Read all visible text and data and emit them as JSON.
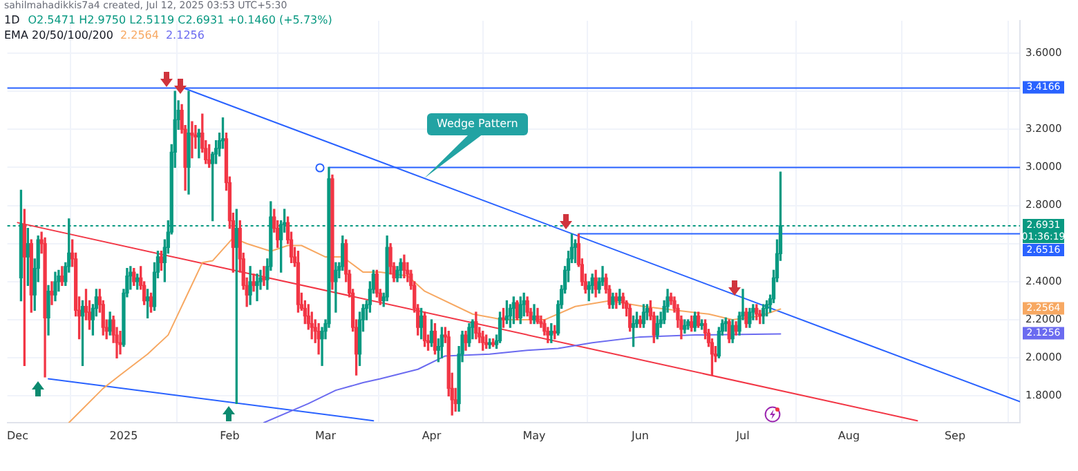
{
  "chart_data": {
    "type": "candlestick",
    "title": "1D",
    "subtitle": "EMA 20/50/100/200",
    "xlim": [
      "2024-11-28",
      "2025-09-20"
    ],
    "xticks": [
      {
        "value": "2024-12-01",
        "label": "Dec"
      },
      {
        "value": "2025-01-01",
        "label": "2025"
      },
      {
        "value": "2025-02-01",
        "label": "Feb"
      },
      {
        "value": "2025-03-01",
        "label": "Mar"
      },
      {
        "value": "2025-04-01",
        "label": "Apr"
      },
      {
        "value": "2025-05-01",
        "label": "May"
      },
      {
        "value": "2025-06-01",
        "label": "Jun"
      },
      {
        "value": "2025-07-01",
        "label": "Jul"
      },
      {
        "value": "2025-08-01",
        "label": "Aug"
      },
      {
        "value": "2025-09-01",
        "label": "Sep"
      }
    ],
    "ylim": [
      1.66,
      3.77
    ],
    "yticks": [
      {
        "value": 1.8,
        "label": "1.8000"
      },
      {
        "value": 2.0,
        "label": "2.0000"
      },
      {
        "value": 2.2,
        "label": "2.2000"
      },
      {
        "value": 2.4,
        "label": "2.4000"
      },
      {
        "value": 2.6,
        "label": null
      },
      {
        "value": 2.8,
        "label": "2.8000"
      },
      {
        "value": 3.0,
        "label": "3.0000"
      },
      {
        "value": 3.2,
        "label": "3.2000"
      },
      {
        "value": 3.4,
        "label": null
      },
      {
        "value": 3.6,
        "label": "3.6000"
      }
    ],
    "grid": true,
    "x": [
      "2024-12-02",
      "2024-12-03",
      "2024-12-04",
      "2024-12-05",
      "2024-12-06",
      "2024-12-07",
      "2024-12-08",
      "2024-12-09",
      "2024-12-10",
      "2024-12-11",
      "2024-12-12",
      "2024-12-13",
      "2024-12-14",
      "2024-12-15",
      "2024-12-16",
      "2024-12-17",
      "2024-12-18",
      "2024-12-19",
      "2024-12-20",
      "2024-12-21",
      "2024-12-22",
      "2024-12-23",
      "2024-12-24",
      "2024-12-25",
      "2024-12-26",
      "2024-12-27",
      "2024-12-28",
      "2024-12-29",
      "2024-12-30",
      "2024-12-31",
      "2025-01-01",
      "2025-01-02",
      "2025-01-03",
      "2025-01-04",
      "2025-01-05",
      "2025-01-06",
      "2025-01-07",
      "2025-01-08",
      "2025-01-09",
      "2025-01-10",
      "2025-01-11",
      "2025-01-12",
      "2025-01-13",
      "2025-01-14",
      "2025-01-15",
      "2025-01-16",
      "2025-01-17",
      "2025-01-18",
      "2025-01-19",
      "2025-01-20",
      "2025-01-21",
      "2025-01-22",
      "2025-01-23",
      "2025-01-24",
      "2025-01-25",
      "2025-01-26",
      "2025-01-27",
      "2025-01-28",
      "2025-01-29",
      "2025-01-30",
      "2025-01-31",
      "2025-02-01",
      "2025-02-02",
      "2025-02-03",
      "2025-02-04",
      "2025-02-05",
      "2025-02-06",
      "2025-02-07",
      "2025-02-08",
      "2025-02-09",
      "2025-02-10",
      "2025-02-11",
      "2025-02-12",
      "2025-02-13",
      "2025-02-14",
      "2025-02-15",
      "2025-02-16",
      "2025-02-17",
      "2025-02-18",
      "2025-02-19",
      "2025-02-20",
      "2025-02-21",
      "2025-02-22",
      "2025-02-23",
      "2025-02-24",
      "2025-02-25",
      "2025-02-26",
      "2025-02-27",
      "2025-02-28",
      "2025-03-01",
      "2025-03-02",
      "2025-03-03",
      "2025-03-04",
      "2025-03-05",
      "2025-03-06",
      "2025-03-07",
      "2025-03-08",
      "2025-03-09",
      "2025-03-10",
      "2025-03-11",
      "2025-03-12",
      "2025-03-13",
      "2025-03-14",
      "2025-03-15",
      "2025-03-16",
      "2025-03-17",
      "2025-03-18",
      "2025-03-19",
      "2025-03-20",
      "2025-03-21",
      "2025-03-22",
      "2025-03-23",
      "2025-03-24",
      "2025-03-25",
      "2025-03-26",
      "2025-03-27",
      "2025-03-28",
      "2025-03-29",
      "2025-03-30",
      "2025-03-31",
      "2025-04-01",
      "2025-04-02",
      "2025-04-03",
      "2025-04-04",
      "2025-04-05",
      "2025-04-06",
      "2025-04-07",
      "2025-04-08",
      "2025-04-09",
      "2025-04-10",
      "2025-04-11",
      "2025-04-12",
      "2025-04-13",
      "2025-04-14",
      "2025-04-15",
      "2025-04-16",
      "2025-04-17",
      "2025-04-18",
      "2025-04-19",
      "2025-04-20",
      "2025-04-21",
      "2025-04-22",
      "2025-04-23",
      "2025-04-24",
      "2025-04-25",
      "2025-04-26",
      "2025-04-27",
      "2025-04-28",
      "2025-04-29",
      "2025-04-30",
      "2025-05-01",
      "2025-05-02",
      "2025-05-03",
      "2025-05-04",
      "2025-05-05",
      "2025-05-06",
      "2025-05-07",
      "2025-05-08",
      "2025-05-09",
      "2025-05-10",
      "2025-05-11",
      "2025-05-12",
      "2025-05-13",
      "2025-05-14",
      "2025-05-15",
      "2025-05-16",
      "2025-05-17",
      "2025-05-18",
      "2025-05-19",
      "2025-05-20",
      "2025-05-21",
      "2025-05-22",
      "2025-05-23",
      "2025-05-24",
      "2025-05-25",
      "2025-05-26",
      "2025-05-27",
      "2025-05-28",
      "2025-05-29",
      "2025-05-30",
      "2025-05-31",
      "2025-06-01",
      "2025-06-02",
      "2025-06-03",
      "2025-06-04",
      "2025-06-05",
      "2025-06-06",
      "2025-06-07",
      "2025-06-08",
      "2025-06-09",
      "2025-06-10",
      "2025-06-11",
      "2025-06-12",
      "2025-06-13",
      "2025-06-14",
      "2025-06-15",
      "2025-06-16",
      "2025-06-17",
      "2025-06-18",
      "2025-06-19",
      "2025-06-20",
      "2025-06-21",
      "2025-06-22",
      "2025-06-23",
      "2025-06-24",
      "2025-06-25",
      "2025-06-26",
      "2025-06-27",
      "2025-06-28",
      "2025-06-29",
      "2025-06-30",
      "2025-07-01",
      "2025-07-02",
      "2025-07-03",
      "2025-07-04",
      "2025-07-05",
      "2025-07-06",
      "2025-07-07",
      "2025-07-08",
      "2025-07-09",
      "2025-07-10",
      "2025-07-11",
      "2025-07-12"
    ],
    "ohlc": [
      [
        2.42,
        2.88,
        2.3,
        2.7
      ],
      [
        2.7,
        2.78,
        1.96,
        2.53
      ],
      [
        2.53,
        2.68,
        2.38,
        2.6
      ],
      [
        2.6,
        2.62,
        2.24,
        2.33
      ],
      [
        2.33,
        2.52,
        2.25,
        2.47
      ],
      [
        2.47,
        2.64,
        2.4,
        2.62
      ],
      [
        2.62,
        2.66,
        2.55,
        2.6
      ],
      [
        2.6,
        2.63,
        1.9,
        2.21
      ],
      [
        2.21,
        2.38,
        2.12,
        2.35
      ],
      [
        2.35,
        2.4,
        2.28,
        2.33
      ],
      [
        2.33,
        2.45,
        2.3,
        2.4
      ],
      [
        2.4,
        2.46,
        2.35,
        2.43
      ],
      [
        2.43,
        2.48,
        2.38,
        2.4
      ],
      [
        2.4,
        2.5,
        2.38,
        2.48
      ],
      [
        2.48,
        2.73,
        2.45,
        2.55
      ],
      [
        2.55,
        2.62,
        2.48,
        2.52
      ],
      [
        2.52,
        2.55,
        2.22,
        2.25
      ],
      [
        2.25,
        2.32,
        2.1,
        2.22
      ],
      [
        2.22,
        2.3,
        1.96,
        2.27
      ],
      [
        2.27,
        2.36,
        2.2,
        2.24
      ],
      [
        2.24,
        2.3,
        2.15,
        2.2
      ],
      [
        2.2,
        2.28,
        2.12,
        2.26
      ],
      [
        2.26,
        2.36,
        2.22,
        2.32
      ],
      [
        2.32,
        2.36,
        2.24,
        2.28
      ],
      [
        2.28,
        2.3,
        2.12,
        2.16
      ],
      [
        2.16,
        2.2,
        2.1,
        2.14
      ],
      [
        2.14,
        2.24,
        2.12,
        2.2
      ],
      [
        2.2,
        2.22,
        2.08,
        2.12
      ],
      [
        2.12,
        2.16,
        2.0,
        2.08
      ],
      [
        2.08,
        2.14,
        2.02,
        2.07
      ],
      [
        2.07,
        2.36,
        2.06,
        2.34
      ],
      [
        2.34,
        2.47,
        2.32,
        2.43
      ],
      [
        2.43,
        2.48,
        2.36,
        2.45
      ],
      [
        2.45,
        2.47,
        2.38,
        2.4
      ],
      [
        2.4,
        2.44,
        2.36,
        2.42
      ],
      [
        2.42,
        2.48,
        2.36,
        2.38
      ],
      [
        2.38,
        2.4,
        2.28,
        2.3
      ],
      [
        2.3,
        2.36,
        2.21,
        2.32
      ],
      [
        2.32,
        2.34,
        2.24,
        2.27
      ],
      [
        2.27,
        2.5,
        2.25,
        2.45
      ],
      [
        2.45,
        2.56,
        2.42,
        2.53
      ],
      [
        2.53,
        2.56,
        2.46,
        2.5
      ],
      [
        2.5,
        2.62,
        2.4,
        2.58
      ],
      [
        2.58,
        2.72,
        2.55,
        2.66
      ],
      [
        2.66,
        3.12,
        2.65,
        3.08
      ],
      [
        3.08,
        3.4,
        3.0,
        3.25
      ],
      [
        3.25,
        3.35,
        3.2,
        3.3
      ],
      [
        3.3,
        3.33,
        3.18,
        3.2
      ],
      [
        3.2,
        3.22,
        2.88,
        3.0
      ],
      [
        3.0,
        3.4,
        2.86,
        3.18
      ],
      [
        3.18,
        3.24,
        3.05,
        3.17
      ],
      [
        3.17,
        3.22,
        3.1,
        3.16
      ],
      [
        3.16,
        3.2,
        3.05,
        3.18
      ],
      [
        3.18,
        3.28,
        3.08,
        3.1
      ],
      [
        3.1,
        3.14,
        3.02,
        3.04
      ],
      [
        3.04,
        3.12,
        3.0,
        3.02
      ],
      [
        3.02,
        3.08,
        2.72,
        3.07
      ],
      [
        3.07,
        3.14,
        3.02,
        3.1
      ],
      [
        3.1,
        3.18,
        3.06,
        3.14
      ],
      [
        3.14,
        3.26,
        3.1,
        3.15
      ],
      [
        3.15,
        3.18,
        2.88,
        2.92
      ],
      [
        2.92,
        2.95,
        2.68,
        2.72
      ],
      [
        2.72,
        2.76,
        2.45,
        2.58
      ],
      [
        2.58,
        2.78,
        1.76,
        2.68
      ],
      [
        2.68,
        2.72,
        2.45,
        2.52
      ],
      [
        2.52,
        2.55,
        2.36,
        2.38
      ],
      [
        2.38,
        2.42,
        2.27,
        2.33
      ],
      [
        2.33,
        2.48,
        2.28,
        2.4
      ],
      [
        2.4,
        2.44,
        2.35,
        2.38
      ],
      [
        2.38,
        2.44,
        2.3,
        2.4
      ],
      [
        2.4,
        2.46,
        2.36,
        2.42
      ],
      [
        2.42,
        2.48,
        2.38,
        2.41
      ],
      [
        2.41,
        2.52,
        2.36,
        2.48
      ],
      [
        2.48,
        2.82,
        2.46,
        2.74
      ],
      [
        2.74,
        2.78,
        2.66,
        2.68
      ],
      [
        2.68,
        2.72,
        2.58,
        2.62
      ],
      [
        2.62,
        2.72,
        2.45,
        2.7
      ],
      [
        2.7,
        2.78,
        2.66,
        2.71
      ],
      [
        2.71,
        2.74,
        2.6,
        2.62
      ],
      [
        2.62,
        2.66,
        2.5,
        2.53
      ],
      [
        2.53,
        2.58,
        2.48,
        2.5
      ],
      [
        2.5,
        2.56,
        2.24,
        2.28
      ],
      [
        2.28,
        2.34,
        2.25,
        2.26
      ],
      [
        2.26,
        2.3,
        2.18,
        2.22
      ],
      [
        2.22,
        2.28,
        2.15,
        2.18
      ],
      [
        2.18,
        2.24,
        2.1,
        2.16
      ],
      [
        2.16,
        2.2,
        2.08,
        2.14
      ],
      [
        2.14,
        2.18,
        2.02,
        2.1
      ],
      [
        2.1,
        2.16,
        1.96,
        2.14
      ],
      [
        2.14,
        2.2,
        2.1,
        2.18
      ],
      [
        2.18,
        3.0,
        2.16,
        2.94
      ],
      [
        2.94,
        2.96,
        2.36,
        2.4
      ],
      [
        2.4,
        2.5,
        2.24,
        2.46
      ],
      [
        2.46,
        2.5,
        2.42,
        2.48
      ],
      [
        2.48,
        2.64,
        2.46,
        2.6
      ],
      [
        2.6,
        2.62,
        2.4,
        2.44
      ],
      [
        2.44,
        2.46,
        2.32,
        2.34
      ],
      [
        2.34,
        2.36,
        2.14,
        2.16
      ],
      [
        2.16,
        2.2,
        1.91,
        2.02
      ],
      [
        2.02,
        2.24,
        1.96,
        2.2
      ],
      [
        2.2,
        2.28,
        2.14,
        2.26
      ],
      [
        2.26,
        2.3,
        2.2,
        2.28
      ],
      [
        2.28,
        2.4,
        2.24,
        2.36
      ],
      [
        2.36,
        2.46,
        2.34,
        2.44
      ],
      [
        2.44,
        2.46,
        2.32,
        2.34
      ],
      [
        2.34,
        2.36,
        2.28,
        2.3
      ],
      [
        2.3,
        2.34,
        2.27,
        2.32
      ],
      [
        2.32,
        2.64,
        2.3,
        2.58
      ],
      [
        2.58,
        2.6,
        2.44,
        2.48
      ],
      [
        2.48,
        2.5,
        2.4,
        2.42
      ],
      [
        2.42,
        2.48,
        2.4,
        2.46
      ],
      [
        2.46,
        2.52,
        2.42,
        2.5
      ],
      [
        2.5,
        2.54,
        2.42,
        2.46
      ],
      [
        2.46,
        2.5,
        2.4,
        2.44
      ],
      [
        2.44,
        2.46,
        2.36,
        2.38
      ],
      [
        2.38,
        2.4,
        2.24,
        2.26
      ],
      [
        2.26,
        2.28,
        2.12,
        2.16
      ],
      [
        2.16,
        2.26,
        2.1,
        2.22
      ],
      [
        2.22,
        2.24,
        2.06,
        2.09
      ],
      [
        2.09,
        2.12,
        2.04,
        2.08
      ],
      [
        2.08,
        2.2,
        2.06,
        2.14
      ],
      [
        2.14,
        2.18,
        2.02,
        2.04
      ],
      [
        2.04,
        2.1,
        1.98,
        2.06
      ],
      [
        2.06,
        2.16,
        2.0,
        2.12
      ],
      [
        2.12,
        2.16,
        2.08,
        2.11
      ],
      [
        2.11,
        2.14,
        1.8,
        1.84
      ],
      [
        1.84,
        1.92,
        1.7,
        1.78
      ],
      [
        1.78,
        1.84,
        1.72,
        1.76
      ],
      [
        1.76,
        2.06,
        1.72,
        2.02
      ],
      [
        2.02,
        2.14,
        1.98,
        2.12
      ],
      [
        2.12,
        2.14,
        2.04,
        2.08
      ],
      [
        2.08,
        2.18,
        2.06,
        2.16
      ],
      [
        2.16,
        2.2,
        2.1,
        2.19
      ],
      [
        2.19,
        2.24,
        2.1,
        2.13
      ],
      [
        2.13,
        2.16,
        2.08,
        2.11
      ],
      [
        2.11,
        2.14,
        2.04,
        2.08
      ],
      [
        2.08,
        2.12,
        2.05,
        2.07
      ],
      [
        2.07,
        2.1,
        2.05,
        2.08
      ],
      [
        2.08,
        2.1,
        2.06,
        2.07
      ],
      [
        2.07,
        2.12,
        2.05,
        2.09
      ],
      [
        2.09,
        2.24,
        2.08,
        2.21
      ],
      [
        2.21,
        2.26,
        2.16,
        2.2
      ],
      [
        2.2,
        2.3,
        2.18,
        2.22
      ],
      [
        2.22,
        2.28,
        2.16,
        2.26
      ],
      [
        2.26,
        2.32,
        2.18,
        2.29
      ],
      [
        2.29,
        2.3,
        2.2,
        2.21
      ],
      [
        2.21,
        2.32,
        2.18,
        2.28
      ],
      [
        2.28,
        2.34,
        2.22,
        2.3
      ],
      [
        2.3,
        2.32,
        2.22,
        2.24
      ],
      [
        2.24,
        2.26,
        2.18,
        2.2
      ],
      [
        2.2,
        2.28,
        2.18,
        2.22
      ],
      [
        2.22,
        2.26,
        2.18,
        2.19
      ],
      [
        2.19,
        2.22,
        2.16,
        2.18
      ],
      [
        2.18,
        2.2,
        2.12,
        2.14
      ],
      [
        2.14,
        2.16,
        2.08,
        2.12
      ],
      [
        2.12,
        2.18,
        2.08,
        2.14
      ],
      [
        2.14,
        2.17,
        2.1,
        2.13
      ],
      [
        2.13,
        2.3,
        2.12,
        2.28
      ],
      [
        2.28,
        2.38,
        2.26,
        2.36
      ],
      [
        2.36,
        2.48,
        2.34,
        2.46
      ],
      [
        2.46,
        2.56,
        2.4,
        2.52
      ],
      [
        2.52,
        2.65,
        2.5,
        2.58
      ],
      [
        2.58,
        2.62,
        2.5,
        2.6
      ],
      [
        2.6,
        2.65,
        2.48,
        2.49
      ],
      [
        2.49,
        2.52,
        2.38,
        2.4
      ],
      [
        2.4,
        2.44,
        2.34,
        2.36
      ],
      [
        2.36,
        2.4,
        2.3,
        2.38
      ],
      [
        2.38,
        2.44,
        2.34,
        2.42
      ],
      [
        2.42,
        2.46,
        2.32,
        2.36
      ],
      [
        2.36,
        2.42,
        2.34,
        2.4
      ],
      [
        2.4,
        2.48,
        2.38,
        2.42
      ],
      [
        2.42,
        2.44,
        2.34,
        2.36
      ],
      [
        2.36,
        2.38,
        2.26,
        2.28
      ],
      [
        2.28,
        2.34,
        2.26,
        2.32
      ],
      [
        2.32,
        2.34,
        2.26,
        2.3
      ],
      [
        2.3,
        2.36,
        2.28,
        2.32
      ],
      [
        2.32,
        2.34,
        2.26,
        2.29
      ],
      [
        2.29,
        2.3,
        2.22,
        2.26
      ],
      [
        2.26,
        2.28,
        2.14,
        2.16
      ],
      [
        2.16,
        2.22,
        2.06,
        2.18
      ],
      [
        2.18,
        2.24,
        2.16,
        2.2
      ],
      [
        2.2,
        2.22,
        2.16,
        2.18
      ],
      [
        2.18,
        2.28,
        2.16,
        2.24
      ],
      [
        2.24,
        2.28,
        2.2,
        2.26
      ],
      [
        2.26,
        2.3,
        2.2,
        2.22
      ],
      [
        2.22,
        2.24,
        2.08,
        2.12
      ],
      [
        2.12,
        2.22,
        2.1,
        2.18
      ],
      [
        2.18,
        2.24,
        2.16,
        2.2
      ],
      [
        2.2,
        2.3,
        2.18,
        2.27
      ],
      [
        2.27,
        2.36,
        2.24,
        2.32
      ],
      [
        2.32,
        2.34,
        2.28,
        2.3
      ],
      [
        2.3,
        2.32,
        2.24,
        2.26
      ],
      [
        2.26,
        2.28,
        2.16,
        2.2
      ],
      [
        2.2,
        2.22,
        2.1,
        2.15
      ],
      [
        2.15,
        2.2,
        2.13,
        2.17
      ],
      [
        2.17,
        2.2,
        2.15,
        2.19
      ],
      [
        2.19,
        2.22,
        2.14,
        2.16
      ],
      [
        2.16,
        2.24,
        2.14,
        2.22
      ],
      [
        2.22,
        2.24,
        2.16,
        2.17
      ],
      [
        2.17,
        2.2,
        2.15,
        2.18
      ],
      [
        2.18,
        2.2,
        2.1,
        2.13
      ],
      [
        2.13,
        2.15,
        2.06,
        2.08
      ],
      [
        2.08,
        2.1,
        1.91,
        2.02
      ],
      [
        2.02,
        2.06,
        1.98,
        2.01
      ],
      [
        2.01,
        2.16,
        2.0,
        2.14
      ],
      [
        2.14,
        2.2,
        2.12,
        2.18
      ],
      [
        2.18,
        2.21,
        2.14,
        2.19
      ],
      [
        2.19,
        2.2,
        2.08,
        2.1
      ],
      [
        2.1,
        2.2,
        2.08,
        2.17
      ],
      [
        2.17,
        2.19,
        2.12,
        2.14
      ],
      [
        2.14,
        2.24,
        2.12,
        2.22
      ],
      [
        2.22,
        2.36,
        2.2,
        2.24
      ],
      [
        2.24,
        2.26,
        2.16,
        2.18
      ],
      [
        2.18,
        2.26,
        2.16,
        2.24
      ],
      [
        2.24,
        2.28,
        2.2,
        2.26
      ],
      [
        2.26,
        2.28,
        2.2,
        2.23
      ],
      [
        2.23,
        2.25,
        2.18,
        2.22
      ],
      [
        2.22,
        2.28,
        2.18,
        2.26
      ],
      [
        2.26,
        2.3,
        2.22,
        2.28
      ],
      [
        2.28,
        2.33,
        2.24,
        2.31
      ],
      [
        2.31,
        2.46,
        2.29,
        2.42
      ],
      [
        2.42,
        2.62,
        2.4,
        2.5471
      ],
      [
        2.5471,
        2.975,
        2.5119,
        2.6931
      ]
    ],
    "colors": [
      "#089981",
      "#f23645",
      "#089981",
      "#f23645",
      "#089981",
      "#089981",
      "#f23645",
      "#f23645",
      "#089981",
      "#f23645",
      "#089981",
      "#089981",
      "#f23645",
      "#089981",
      "#089981",
      "#f23645",
      "#f23645",
      "#f23645",
      "#089981",
      "#f23645",
      "#f23645",
      "#089981",
      "#089981",
      "#f23645",
      "#f23645",
      "#f23645",
      "#089981",
      "#f23645",
      "#f23645",
      "#f23645",
      "#089981",
      "#089981",
      "#089981",
      "#f23645",
      "#089981",
      "#f23645",
      "#f23645",
      "#089981",
      "#f23645",
      "#089981",
      "#089981",
      "#f23645",
      "#089981",
      "#089981",
      "#089981",
      "#089981",
      "#089981",
      "#f23645",
      "#f23645",
      "#089981",
      "#f23645",
      "#f23645",
      "#089981",
      "#f23645",
      "#f23645",
      "#f23645",
      "#089981",
      "#089981",
      "#089981",
      "#089981",
      "#f23645",
      "#f23645",
      "#f23645",
      "#089981",
      "#f23645",
      "#f23645",
      "#f23645",
      "#089981",
      "#f23645",
      "#089981",
      "#089981",
      "#f23645",
      "#089981",
      "#089981",
      "#f23645",
      "#f23645",
      "#089981",
      "#089981",
      "#f23645",
      "#f23645",
      "#f23645",
      "#f23645",
      "#f23645",
      "#f23645",
      "#f23645",
      "#f23645",
      "#f23645",
      "#f23645",
      "#089981",
      "#089981",
      "#089981",
      "#f23645",
      "#089981",
      "#089981",
      "#089981",
      "#f23645",
      "#f23645",
      "#f23645",
      "#f23645",
      "#089981",
      "#089981",
      "#089981",
      "#089981",
      "#089981",
      "#f23645",
      "#f23645",
      "#089981",
      "#089981",
      "#f23645",
      "#f23645",
      "#089981",
      "#089981",
      "#f23645",
      "#f23645",
      "#f23645",
      "#f23645",
      "#f23645",
      "#089981",
      "#f23645",
      "#f23645",
      "#089981",
      "#f23645",
      "#089981",
      "#089981",
      "#f23645",
      "#f23645",
      "#f23645",
      "#f23645",
      "#089981",
      "#089981",
      "#f23645",
      "#089981",
      "#089981",
      "#f23645",
      "#f23645",
      "#f23645",
      "#f23645",
      "#089981",
      "#f23645",
      "#089981",
      "#089981",
      "#f23645",
      "#089981",
      "#089981",
      "#089981",
      "#f23645",
      "#089981",
      "#089981",
      "#f23645",
      "#f23645",
      "#089981",
      "#f23645",
      "#f23645",
      "#f23645",
      "#f23645",
      "#089981",
      "#f23645",
      "#089981",
      "#089981",
      "#089981",
      "#089981",
      "#089981",
      "#089981",
      "#f23645",
      "#f23645",
      "#f23645",
      "#089981",
      "#089981",
      "#f23645",
      "#089981",
      "#089981",
      "#f23645",
      "#f23645",
      "#089981",
      "#f23645",
      "#089981",
      "#f23645",
      "#f23645",
      "#f23645",
      "#089981",
      "#089981",
      "#f23645",
      "#089981",
      "#089981",
      "#f23645",
      "#f23645",
      "#089981",
      "#089981",
      "#089981",
      "#089981",
      "#f23645",
      "#f23645",
      "#f23645",
      "#f23645",
      "#089981",
      "#089981",
      "#f23645",
      "#089981",
      "#f23645",
      "#089981",
      "#f23645",
      "#f23645",
      "#f23645",
      "#f23645",
      "#089981",
      "#089981",
      "#089981",
      "#f23645",
      "#089981",
      "#f23645",
      "#089981",
      "#089981",
      "#f23645",
      "#089981",
      "#089981",
      "#f23645",
      "#f23645",
      "#089981",
      "#089981",
      "#089981",
      "#089981",
      "#089981",
      "#089981"
    ],
    "series": [
      {
        "type": "line",
        "color": "#f7a862",
        "x": [
          "2024-12-16",
          "2024-12-26",
          "2024-12-31",
          "2025-01-08",
          "2025-01-14",
          "2025-01-19",
          "2025-01-24",
          "2025-01-27",
          "2025-02-02",
          "2025-02-06",
          "2025-02-13",
          "2025-02-18",
          "2025-02-22",
          "2025-03-01",
          "2025-03-06",
          "2025-03-12",
          "2025-03-17",
          "2025-03-25",
          "2025-03-30",
          "2025-04-13",
          "2025-04-22",
          "2025-05-04",
          "2025-05-13",
          "2025-05-23",
          "2025-06-02",
          "2025-06-16",
          "2025-06-21",
          "2025-06-28",
          "2025-07-06",
          "2025-07-12"
        ],
        "values": [
          1.66,
          1.84,
          1.91,
          2.02,
          2.12,
          2.31,
          2.5,
          2.51,
          2.63,
          2.6,
          2.56,
          2.59,
          2.59,
          2.53,
          2.53,
          2.45,
          2.45,
          2.43,
          2.35,
          2.23,
          2.2,
          2.2,
          2.27,
          2.3,
          2.27,
          2.24,
          2.23,
          2.2,
          2.22,
          2.2564
        ]
      },
      {
        "type": "line",
        "color": "#6b6bf0",
        "x": [
          "2025-02-11",
          "2025-02-24",
          "2025-03-04",
          "2025-03-12",
          "2025-03-17",
          "2025-03-28",
          "2025-04-05",
          "2025-04-18",
          "2025-04-29",
          "2025-05-08",
          "2025-05-18",
          "2025-06-01",
          "2025-06-17",
          "2025-07-12"
        ],
        "values": [
          1.66,
          1.76,
          1.83,
          1.87,
          1.89,
          1.94,
          2.01,
          2.02,
          2.04,
          2.05,
          2.08,
          2.11,
          2.12,
          2.1256
        ]
      },
      {
        "type": "line",
        "color": "#2962ff",
        "x": [
          "2025-01-18",
          "2025-09-20"
        ],
        "values": [
          3.42,
          1.77
        ]
      },
      {
        "type": "line",
        "color": "#f23645",
        "x": [
          "2024-12-01",
          "2025-08-21"
        ],
        "values": [
          2.71,
          1.67
        ]
      },
      {
        "type": "line",
        "color": "#2962ff",
        "x": [
          "2024-12-10",
          "2025-03-15"
        ],
        "values": [
          1.89,
          1.67
        ]
      },
      {
        "type": "line",
        "color": "#2962ff",
        "x": [
          "2025-03-02",
          "2025-09-20"
        ],
        "values": [
          3.0,
          3.0
        ]
      },
      {
        "type": "line",
        "color": "#2962ff",
        "x": [
          "2025-05-14",
          "2025-09-20"
        ],
        "values": [
          2.6516,
          2.6516
        ]
      }
    ],
    "ref_lines": [
      {
        "axis": "y",
        "value": 3.4166,
        "label": "3.4166",
        "color": "#2962ff"
      },
      {
        "axis": "y",
        "value": 2.6931,
        "label": "2.6931\n01:36:19",
        "color": "#089981",
        "line_style": "dotted"
      }
    ],
    "annotations": [
      "sahilmahadikkis7a4 created, Jul 12, 2025 03:53 UTC+5:30",
      "O2.5471 H2.9750 L2.5119 C2.6931 +0.1460 (+5.73%)",
      "Wedge Pattern",
      "2.6516",
      "2.2564",
      "2.1256"
    ]
  }
}
